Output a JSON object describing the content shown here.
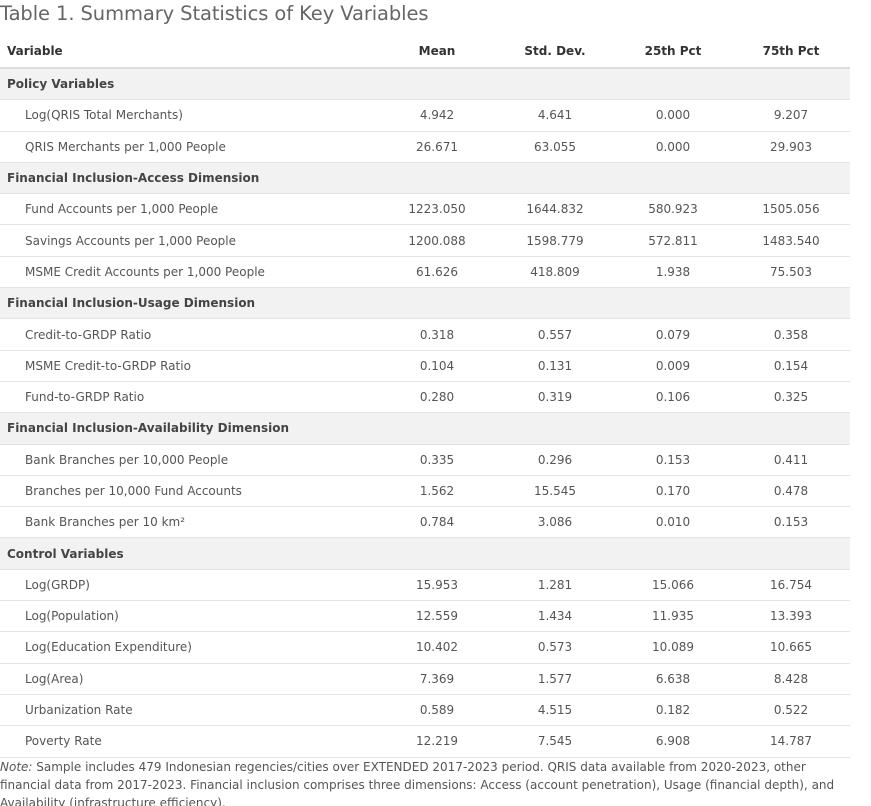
{
  "caption": "Table 1. Summary Statistics of Key Variables",
  "columns": [
    "Variable",
    "Mean",
    "Std. Dev.",
    "25th Pct",
    "75th Pct"
  ],
  "sections": [
    {
      "title": "Policy Variables",
      "rows": [
        [
          "Log(QRIS Total Merchants)",
          "4.942",
          "4.641",
          "0.000",
          "9.207"
        ],
        [
          "QRIS Merchants per 1,000 People",
          "26.671",
          "63.055",
          "0.000",
          "29.903"
        ]
      ]
    },
    {
      "title": "Financial Inclusion-Access Dimension",
      "rows": [
        [
          "Fund Accounts per 1,000 People",
          "1223.050",
          "1644.832",
          "580.923",
          "1505.056"
        ],
        [
          "Savings Accounts per 1,000 People",
          "1200.088",
          "1598.779",
          "572.811",
          "1483.540"
        ],
        [
          "MSME Credit Accounts per 1,000 People",
          "61.626",
          "418.809",
          "1.938",
          "75.503"
        ]
      ]
    },
    {
      "title": "Financial Inclusion-Usage Dimension",
      "rows": [
        [
          "Credit-to-GRDP Ratio",
          "0.318",
          "0.557",
          "0.079",
          "0.358"
        ],
        [
          "MSME Credit-to-GRDP Ratio",
          "0.104",
          "0.131",
          "0.009",
          "0.154"
        ],
        [
          "Fund-to-GRDP Ratio",
          "0.280",
          "0.319",
          "0.106",
          "0.325"
        ]
      ]
    },
    {
      "title": "Financial Inclusion-Availability Dimension",
      "rows": [
        [
          "Bank Branches per 10,000 People",
          "0.335",
          "0.296",
          "0.153",
          "0.411"
        ],
        [
          "Branches per 10,000 Fund Accounts",
          "1.562",
          "15.545",
          "0.170",
          "0.478"
        ],
        [
          "Bank Branches per 10 km²",
          "0.784",
          "3.086",
          "0.010",
          "0.153"
        ]
      ]
    },
    {
      "title": "Control Variables",
      "rows": [
        [
          "Log(GRDP)",
          "15.953",
          "1.281",
          "15.066",
          "16.754"
        ],
        [
          "Log(Population)",
          "12.559",
          "1.434",
          "11.935",
          "13.393"
        ],
        [
          "Log(Education Expenditure)",
          "10.402",
          "0.573",
          "10.089",
          "10.665"
        ],
        [
          "Log(Area)",
          "7.369",
          "1.577",
          "6.638",
          "8.428"
        ],
        [
          "Urbanization Rate",
          "0.589",
          "4.515",
          "0.182",
          "0.522"
        ],
        [
          "Poverty Rate",
          "12.219",
          "7.545",
          "6.908",
          "14.787"
        ]
      ]
    }
  ],
  "note": {
    "label": "Note:",
    "text": " Sample includes 479 Indonesian regencies/cities over EXTENDED 2017-2023 period. QRIS data available from 2020-2023, other financial data from 2017-2023. Financial inclusion comprises three dimensions: Access (account penetration), Usage (financial depth), and Availability (infrastructure efficiency)."
  }
}
